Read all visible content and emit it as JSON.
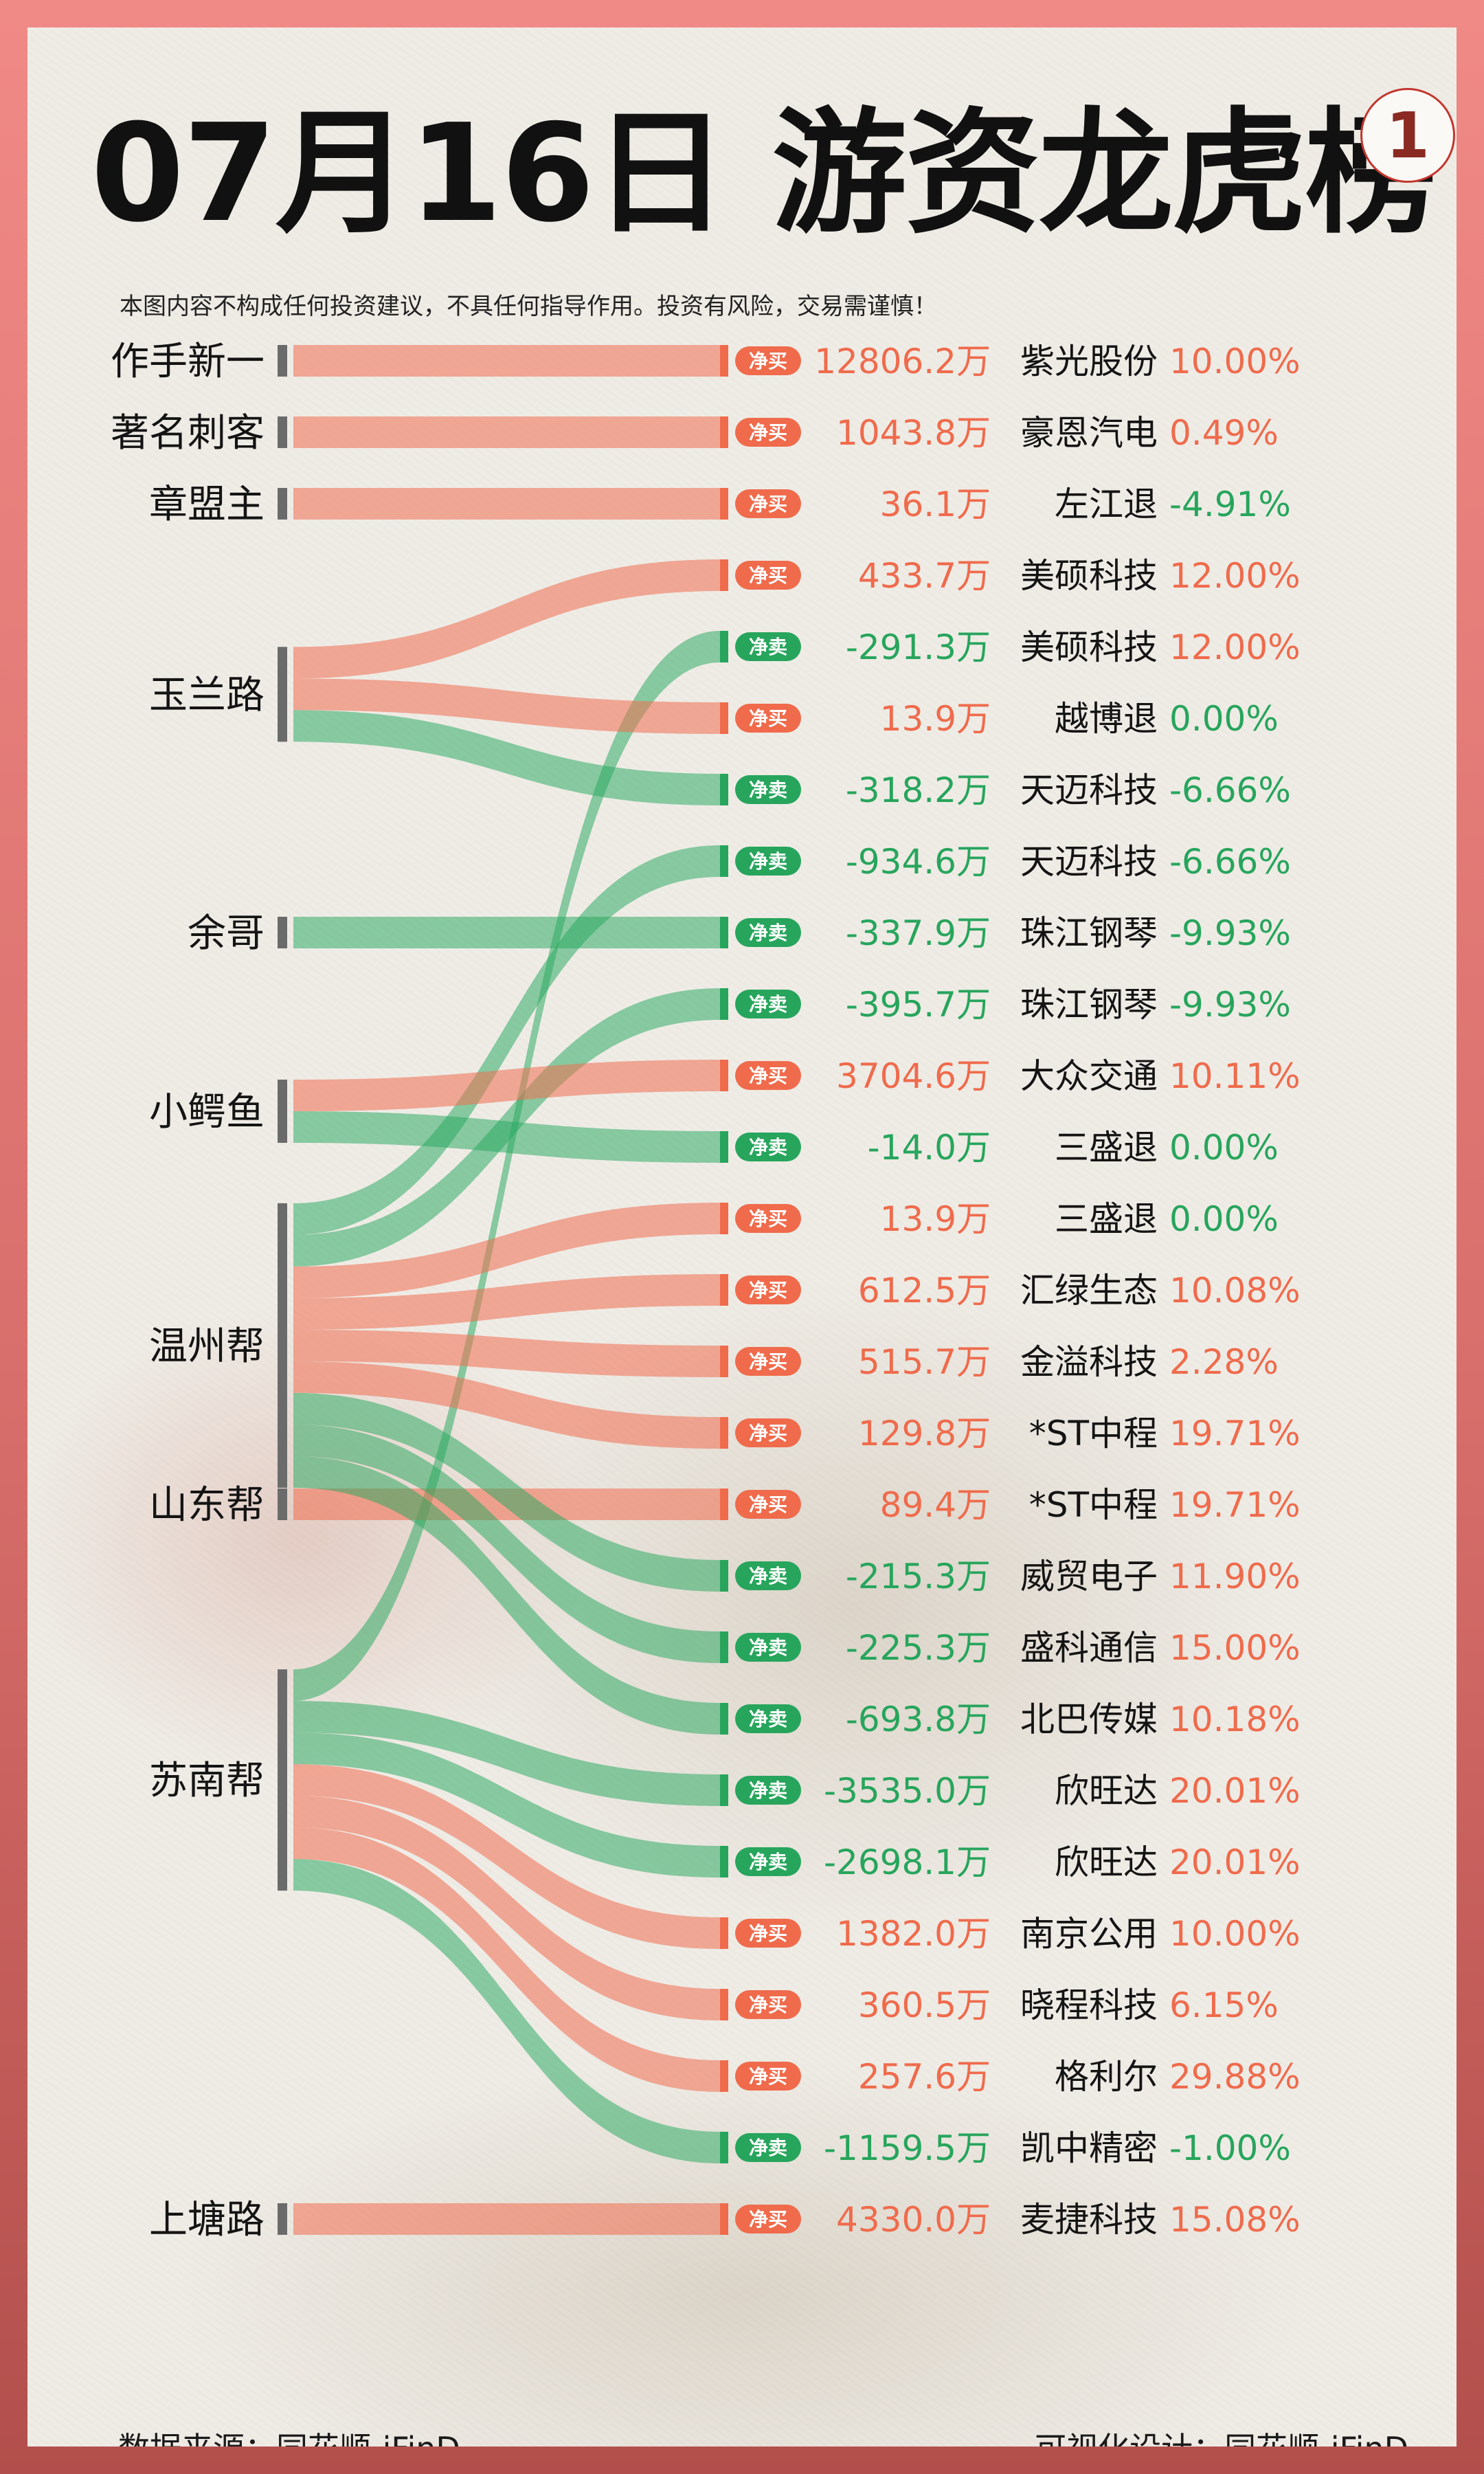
{
  "header": {
    "title": "07月16日 游资龙虎榜",
    "page_number": "1",
    "disclaimer": "本图内容不构成任何投资建议，不具任何指导作用。投资有风险，交易需谨慎！"
  },
  "footer": {
    "source": "数据来源：同花顺-iFinD",
    "design": "可视化设计：同花顺-iFinD"
  },
  "colors": {
    "buy": "#ef6b4c",
    "sell": "#27a55c",
    "buy_flow": "rgba(240,110,80,0.55)",
    "sell_flow": "rgba(40,168,95,0.52)",
    "trader_bar": "#6b6b6b"
  },
  "chart_data": {
    "type": "sankey",
    "buy_label": "净买",
    "sell_label": "净卖",
    "traders": [
      "作手新一",
      "著名刺客",
      "章盟主",
      "玉兰路",
      "余哥",
      "小鳄鱼",
      "温州帮",
      "苏南帮",
      "上塘路",
      "山东帮"
    ],
    "flows": [
      {
        "trader": "作手新一",
        "side": "buy",
        "amount": "12806.2万",
        "stock": "紫光股份",
        "change": "10.00%"
      },
      {
        "trader": "著名刺客",
        "side": "buy",
        "amount": "1043.8万",
        "stock": "豪恩汽电",
        "change": "0.49%"
      },
      {
        "trader": "章盟主",
        "side": "buy",
        "amount": "36.1万",
        "stock": "左江退",
        "change": "-4.91%"
      },
      {
        "trader": "玉兰路",
        "side": "buy",
        "amount": "433.7万",
        "stock": "美硕科技",
        "change": "12.00%"
      },
      {
        "trader": "苏南帮",
        "side": "sell",
        "amount": "-291.3万",
        "stock": "美硕科技",
        "change": "12.00%"
      },
      {
        "trader": "玉兰路",
        "side": "buy",
        "amount": "13.9万",
        "stock": "越博退",
        "change": "0.00%"
      },
      {
        "trader": "玉兰路",
        "side": "sell",
        "amount": "-318.2万",
        "stock": "天迈科技",
        "change": "-6.66%"
      },
      {
        "trader": "温州帮",
        "side": "sell",
        "amount": "-934.6万",
        "stock": "天迈科技",
        "change": "-6.66%"
      },
      {
        "trader": "余哥",
        "side": "sell",
        "amount": "-337.9万",
        "stock": "珠江钢琴",
        "change": "-9.93%"
      },
      {
        "trader": "温州帮",
        "side": "sell",
        "amount": "-395.7万",
        "stock": "珠江钢琴",
        "change": "-9.93%"
      },
      {
        "trader": "小鳄鱼",
        "side": "buy",
        "amount": "3704.6万",
        "stock": "大众交通",
        "change": "10.11%"
      },
      {
        "trader": "小鳄鱼",
        "side": "sell",
        "amount": "-14.0万",
        "stock": "三盛退",
        "change": "0.00%"
      },
      {
        "trader": "温州帮",
        "side": "buy",
        "amount": "13.9万",
        "stock": "三盛退",
        "change": "0.00%"
      },
      {
        "trader": "温州帮",
        "side": "buy",
        "amount": "612.5万",
        "stock": "汇绿生态",
        "change": "10.08%"
      },
      {
        "trader": "温州帮",
        "side": "buy",
        "amount": "515.7万",
        "stock": "金溢科技",
        "change": "2.28%"
      },
      {
        "trader": "温州帮",
        "side": "buy",
        "amount": "129.8万",
        "stock": "*ST中程",
        "change": "19.71%"
      },
      {
        "trader": "山东帮",
        "side": "buy",
        "amount": "89.4万",
        "stock": "*ST中程",
        "change": "19.71%"
      },
      {
        "trader": "温州帮",
        "side": "sell",
        "amount": "-215.3万",
        "stock": "威贸电子",
        "change": "11.90%"
      },
      {
        "trader": "温州帮",
        "side": "sell",
        "amount": "-225.3万",
        "stock": "盛科通信",
        "change": "15.00%"
      },
      {
        "trader": "温州帮",
        "side": "sell",
        "amount": "-693.8万",
        "stock": "北巴传媒",
        "change": "10.18%"
      },
      {
        "trader": "苏南帮",
        "side": "sell",
        "amount": "-3535.0万",
        "stock": "欣旺达",
        "change": "20.01%"
      },
      {
        "trader": "苏南帮",
        "side": "sell",
        "amount": "-2698.1万",
        "stock": "欣旺达",
        "change": "20.01%"
      },
      {
        "trader": "苏南帮",
        "side": "buy",
        "amount": "1382.0万",
        "stock": "南京公用",
        "change": "10.00%"
      },
      {
        "trader": "苏南帮",
        "side": "buy",
        "amount": "360.5万",
        "stock": "晓程科技",
        "change": "6.15%"
      },
      {
        "trader": "苏南帮",
        "side": "buy",
        "amount": "257.6万",
        "stock": "格利尔",
        "change": "29.88%"
      },
      {
        "trader": "苏南帮",
        "side": "sell",
        "amount": "-1159.5万",
        "stock": "凯中精密",
        "change": "-1.00%"
      },
      {
        "trader": "上塘路",
        "side": "buy",
        "amount": "4330.0万",
        "stock": "麦捷科技",
        "change": "15.08%"
      }
    ]
  }
}
